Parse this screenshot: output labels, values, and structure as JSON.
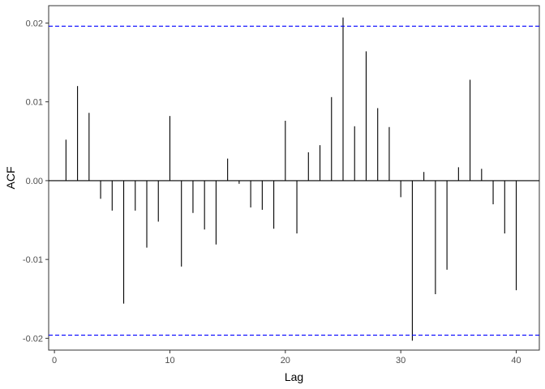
{
  "chart_data": {
    "type": "bar",
    "xlabel": "Lag",
    "ylabel": "ACF",
    "xlim": [
      -0.5,
      42
    ],
    "ylim": [
      -0.0215,
      0.0222
    ],
    "x_ticks": [
      0,
      10,
      20,
      30,
      40
    ],
    "x_tick_labels": [
      "0",
      "10",
      "20",
      "30",
      "40"
    ],
    "y_ticks": [
      -0.02,
      -0.01,
      0.0,
      0.01,
      0.02
    ],
    "y_tick_labels": [
      "-0.02",
      "-0.01",
      "0.00",
      "0.01",
      "0.02"
    ],
    "confidence_bound": 0.0196,
    "lags": [
      1,
      2,
      3,
      4,
      5,
      6,
      7,
      8,
      9,
      10,
      11,
      12,
      13,
      14,
      15,
      16,
      17,
      18,
      19,
      20,
      21,
      22,
      23,
      24,
      25,
      26,
      27,
      28,
      29,
      30,
      31,
      32,
      33,
      34,
      35,
      36,
      37,
      38,
      39,
      40
    ],
    "values": [
      0.0052,
      0.012,
      0.0086,
      -0.0023,
      -0.0038,
      -0.0156,
      -0.0038,
      -0.0085,
      -0.0052,
      0.0082,
      -0.0109,
      -0.0041,
      -0.0062,
      -0.0081,
      0.0028,
      -0.0004,
      -0.0034,
      -0.0037,
      -0.0061,
      0.0076,
      -0.0067,
      0.0036,
      0.0045,
      0.0106,
      0.0207,
      0.0069,
      0.0164,
      0.0092,
      0.0068,
      -0.0021,
      -0.0203,
      0.0011,
      -0.0144,
      -0.0113,
      0.0017,
      0.0128,
      0.0015,
      -0.003,
      -0.0067,
      -0.0139
    ],
    "colors": {
      "bars": "#000000",
      "bounds": "#0000ff",
      "panel_border": "#333333"
    },
    "grid": false,
    "legend": "none"
  }
}
